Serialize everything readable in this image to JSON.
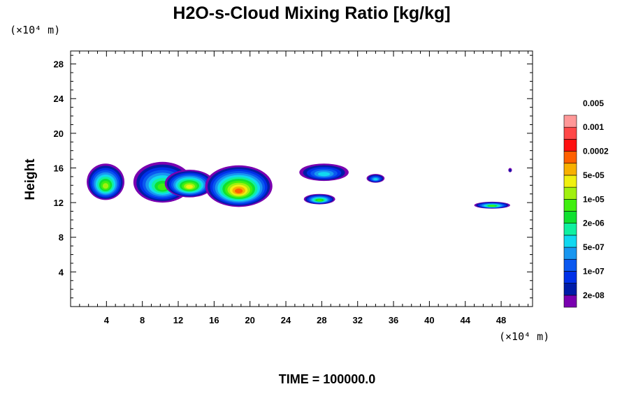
{
  "chart_data": {
    "type": "contour",
    "title": "H2O-s-Cloud Mixing Ratio [kg/kg]",
    "ylabel": "Height",
    "xlabel": "",
    "x_units": "(×10⁴ m)",
    "y_units": "(×10⁴ m)",
    "footer": "TIME = 100000.0",
    "xlim": [
      0,
      51.5
    ],
    "ylim": [
      0,
      29.5
    ],
    "x_ticks": [
      4,
      8,
      12,
      16,
      20,
      24,
      28,
      32,
      36,
      40,
      44,
      48
    ],
    "y_ticks": [
      4,
      8,
      12,
      16,
      20,
      24,
      28
    ],
    "colorbar": {
      "colors": [
        "#7a00b0",
        "#001ca8",
        "#0030e8",
        "#0a58f0",
        "#1896f0",
        "#10d8f0",
        "#10f0a0",
        "#10e030",
        "#40ef10",
        "#a0f010",
        "#f0f010",
        "#f8b000",
        "#ff6000",
        "#ff1010",
        "#ff4848",
        "#ff9898"
      ],
      "labels": [
        "2e-08",
        "1e-07",
        "5e-07",
        "2e-06",
        "1e-05",
        "5e-05",
        "0.0002",
        "0.001",
        "0.005"
      ]
    },
    "cloud_regions": [
      {
        "x": [
          1.8,
          6.0
        ],
        "y": [
          12.3,
          16.5
        ],
        "peak_level": 9
      },
      {
        "x": [
          7.0,
          13.5
        ],
        "y": [
          12.0,
          16.7
        ],
        "peak_level": 8
      },
      {
        "x": [
          10.5,
          16.0
        ],
        "y": [
          12.6,
          15.8
        ],
        "peak_level": 10
      },
      {
        "x": [
          15.0,
          22.5
        ],
        "y": [
          11.5,
          16.3
        ],
        "peak_level": 12
      },
      {
        "x": [
          25.5,
          31.0
        ],
        "y": [
          14.5,
          16.5
        ],
        "peak_level": 5
      },
      {
        "x": [
          26.0,
          29.5
        ],
        "y": [
          11.8,
          13.0
        ],
        "peak_level": 8
      },
      {
        "x": [
          33.0,
          35.0
        ],
        "y": [
          14.3,
          15.3
        ],
        "peak_level": 5
      },
      {
        "x": [
          45.0,
          49.0
        ],
        "y": [
          11.3,
          12.1
        ],
        "peak_level": 8
      },
      {
        "x": [
          48.8,
          49.2
        ],
        "y": [
          15.5,
          16.0
        ],
        "peak_level": 1
      }
    ]
  }
}
